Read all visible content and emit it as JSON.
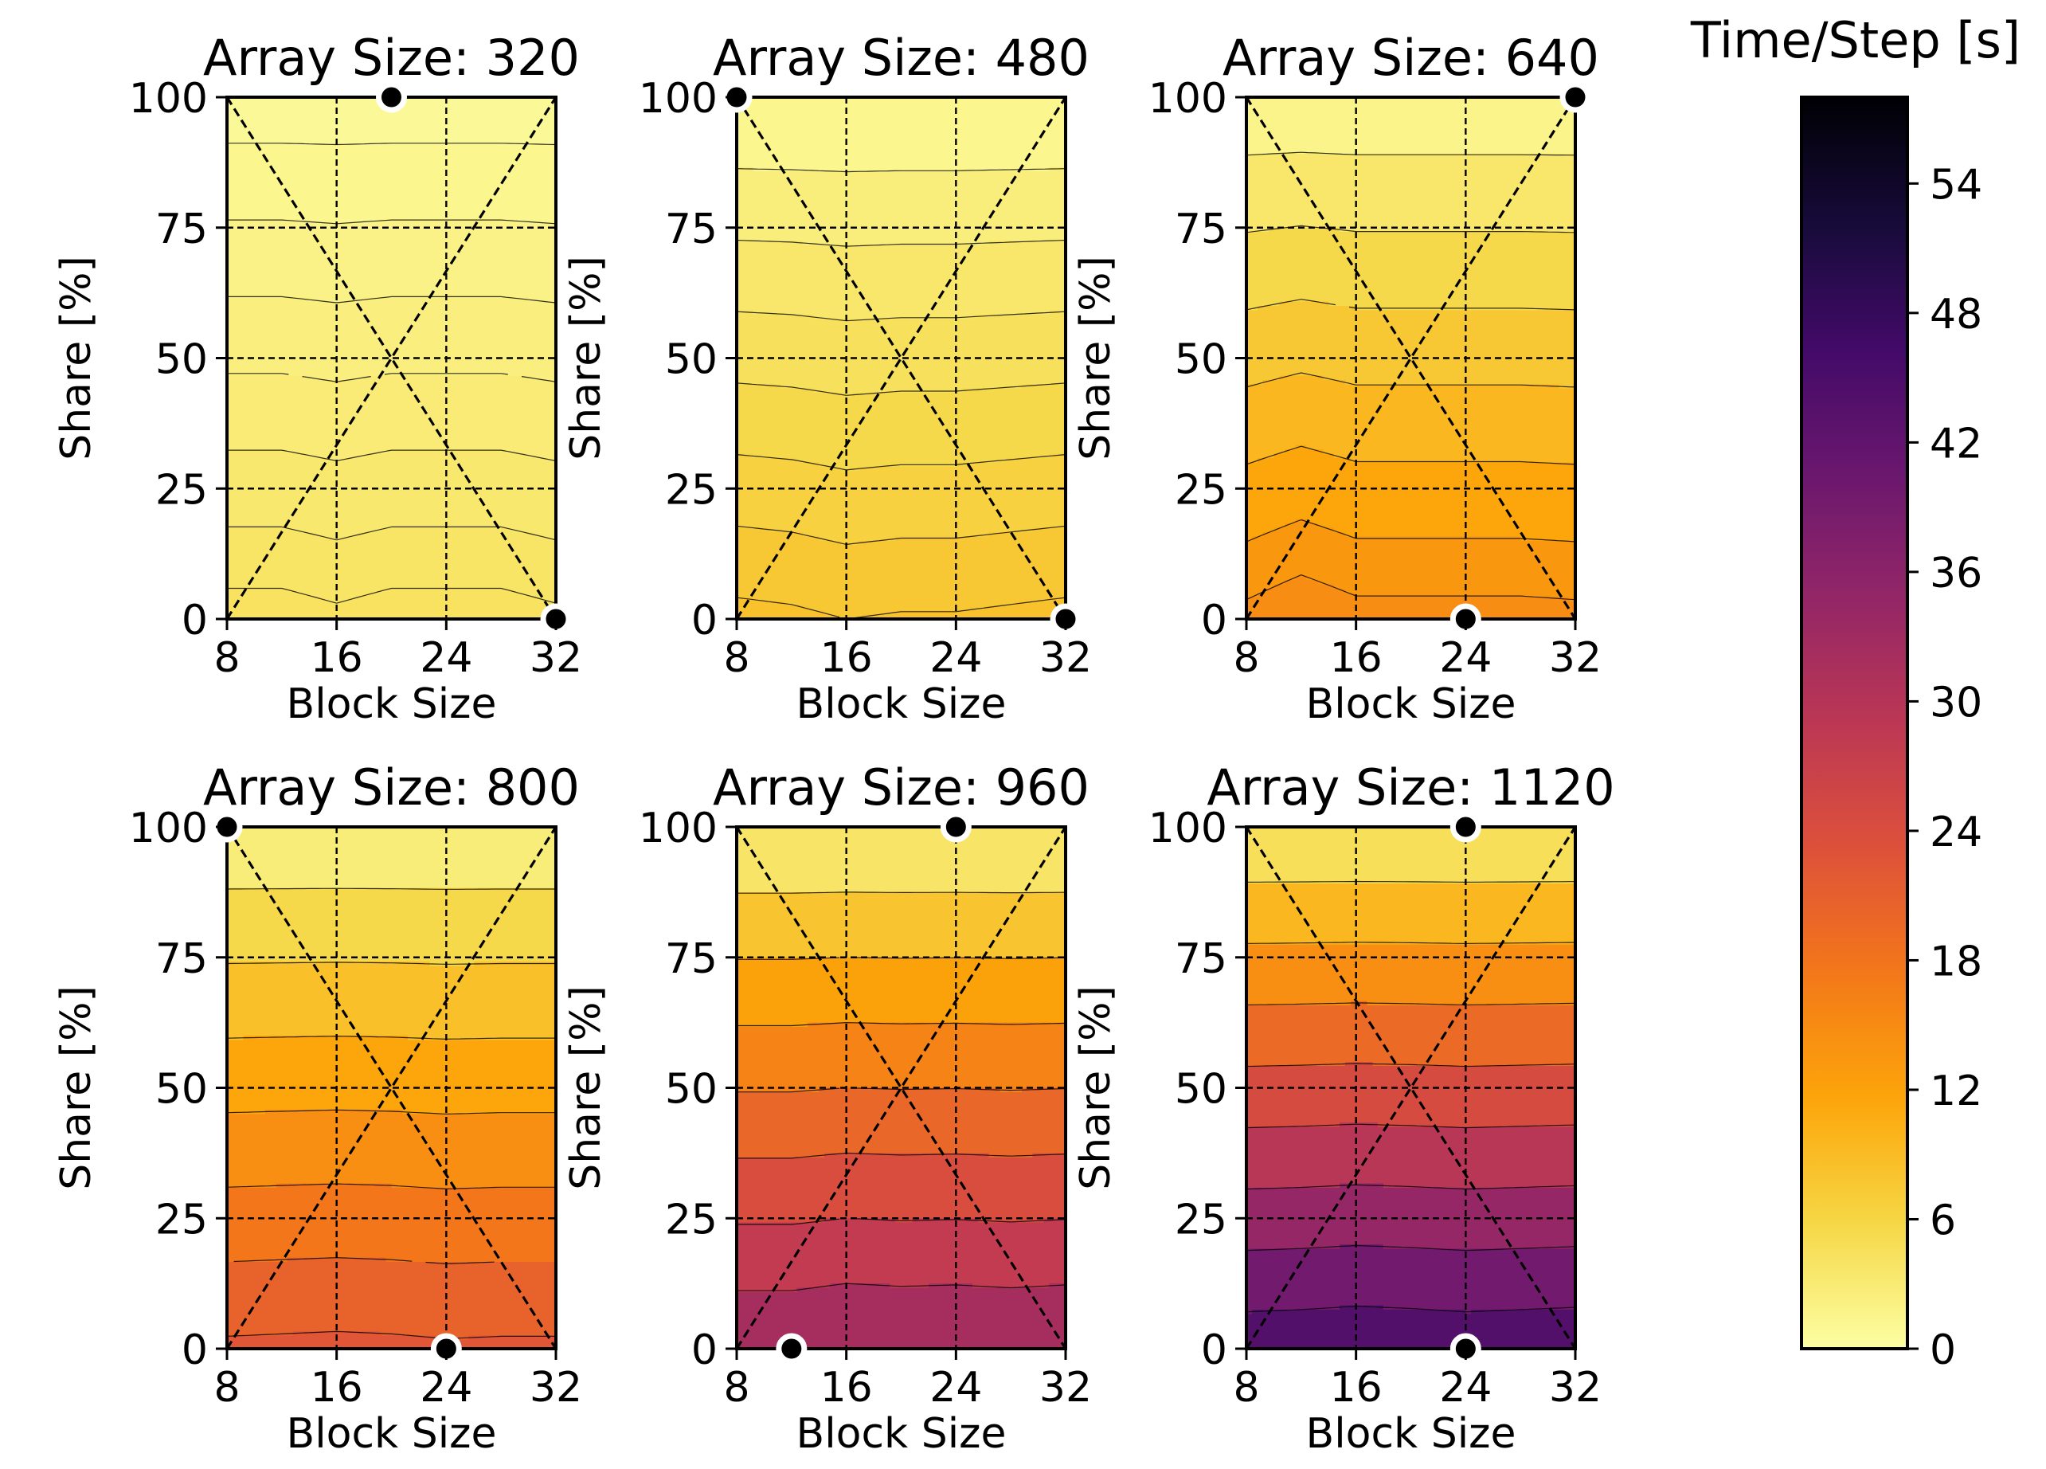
{
  "chart_data": {
    "type": "contourf",
    "colorbar": {
      "label": "Time/Step [s]",
      "range": [
        0,
        58
      ],
      "ticks": [
        0,
        6,
        12,
        18,
        24,
        30,
        36,
        42,
        48,
        54
      ],
      "tick_labels": [
        "0",
        "6",
        "12",
        "18",
        "24",
        "30",
        "36",
        "42",
        "48",
        "54"
      ],
      "colormap": "inferno_r",
      "stops": [
        "#fcffa4",
        "#f6d746",
        "#fca50a",
        "#f37819",
        "#dd513a",
        "#bc3754",
        "#932667",
        "#6a176e",
        "#420a68",
        "#160b39",
        "#000004"
      ]
    },
    "x_grid": [
      8,
      12,
      16,
      20,
      24,
      28,
      32
    ],
    "y_grid": [
      0,
      10,
      20,
      30,
      40,
      50,
      60,
      70,
      80,
      90,
      100
    ],
    "panels": [
      {
        "title": "Array Size: 320",
        "xlabel": "Block Size",
        "ylabel": "Share [%]",
        "xlim": [
          8,
          32
        ],
        "ylim": [
          0,
          100
        ],
        "xticks": [
          8,
          16,
          24,
          32
        ],
        "xtick_labels": [
          "8",
          "16",
          "24",
          "32"
        ],
        "yticks": [
          0,
          25,
          50,
          75,
          100
        ],
        "ytick_labels": [
          "0",
          "25",
          "50",
          "75",
          "100"
        ],
        "bottom_profile": [
          4.2,
          4.2,
          4.1,
          4.2,
          4.2,
          4.2,
          4.1
        ],
        "top_profile": [
          0.8,
          0.8,
          0.8,
          0.8,
          0.8,
          0.8,
          0.8
        ],
        "gamma": 1.0,
        "levels": [
          1.1,
          1.6,
          2.1,
          2.6,
          3.1,
          3.6,
          4.0
        ],
        "min_markers": [
          [
            20,
            100
          ],
          [
            32,
            0
          ]
        ]
      },
      {
        "title": "Array Size: 480",
        "xlabel": "Block Size",
        "ylabel": "Share [%]",
        "xlim": [
          8,
          32
        ],
        "ylim": [
          0,
          100
        ],
        "xticks": [
          8,
          16,
          24,
          32
        ],
        "xtick_labels": [
          "8",
          "16",
          "24",
          "32"
        ],
        "yticks": [
          0,
          25,
          50,
          75,
          100
        ],
        "ytick_labels": [
          "0",
          "25",
          "50",
          "75",
          "100"
        ],
        "bottom_profile": [
          8.3,
          8.2,
          8.0,
          8.1,
          8.1,
          8.2,
          8.3
        ],
        "top_profile": [
          1.0,
          1.0,
          1.0,
          1.0,
          1.0,
          1.0,
          1.0
        ],
        "gamma": 1.0,
        "levels": [
          2.0,
          3.0,
          4.0,
          5.0,
          6.0,
          7.0,
          8.0
        ],
        "min_markers": [
          [
            8,
            100
          ],
          [
            32,
            0
          ]
        ]
      },
      {
        "title": "Array Size: 640",
        "xlabel": "Block Size",
        "ylabel": "Share [%]",
        "xlim": [
          8,
          32
        ],
        "ylim": [
          0,
          100
        ],
        "xticks": [
          8,
          16,
          24,
          32
        ],
        "xtick_labels": [
          "8",
          "16",
          "24",
          "32"
        ],
        "yticks": [
          0,
          25,
          50,
          75,
          100
        ],
        "ytick_labels": [
          "0",
          "25",
          "50",
          "75",
          "100"
        ],
        "bottom_profile": [
          14.5,
          15.2,
          14.6,
          14.6,
          14.6,
          14.6,
          14.5
        ],
        "top_profile": [
          1.0,
          1.0,
          1.0,
          1.0,
          1.0,
          1.0,
          1.0
        ],
        "gamma": 1.0,
        "levels": [
          2.5,
          4.5,
          6.5,
          8.5,
          10.5,
          12.5,
          14.0
        ],
        "min_markers": [
          [
            32,
            100
          ],
          [
            24,
            0
          ]
        ]
      },
      {
        "title": "Array Size: 800",
        "xlabel": "Block Size",
        "ylabel": "Share [%]",
        "xlim": [
          8,
          32
        ],
        "ylim": [
          0,
          100
        ],
        "xticks": [
          8,
          16,
          24,
          32
        ],
        "xtick_labels": [
          "8",
          "16",
          "24",
          "32"
        ],
        "yticks": [
          0,
          25,
          50,
          75,
          100
        ],
        "ytick_labels": [
          "0",
          "25",
          "50",
          "75",
          "100"
        ],
        "bottom_profile": [
          22.5,
          22.6,
          22.7,
          22.6,
          22.4,
          22.5,
          22.5
        ],
        "top_profile": [
          1.5,
          1.5,
          1.5,
          1.5,
          1.5,
          1.5,
          1.5
        ],
        "gamma": 1.0,
        "levels": [
          4.0,
          7.0,
          10.0,
          13.0,
          16.0,
          19.0,
          22.0
        ],
        "min_markers": [
          [
            8,
            100
          ],
          [
            24,
            0
          ]
        ]
      },
      {
        "title": "Array Size: 960",
        "xlabel": "Block Size",
        "ylabel": "Share [%]",
        "xlim": [
          8,
          32
        ],
        "ylim": [
          0,
          100
        ],
        "xticks": [
          8,
          16,
          24,
          32
        ],
        "xtick_labels": [
          "8",
          "16",
          "24",
          "32"
        ],
        "yticks": [
          0,
          25,
          50,
          75,
          100
        ],
        "ytick_labels": [
          "0",
          "25",
          "50",
          "75",
          "100"
        ],
        "bottom_profile": [
          33.5,
          33.5,
          34.0,
          33.8,
          33.9,
          33.7,
          33.9
        ],
        "top_profile": [
          2.0,
          2.0,
          2.0,
          2.0,
          2.0,
          2.0,
          2.0
        ],
        "gamma": 1.0,
        "levels": [
          6.0,
          10.0,
          14.0,
          18.0,
          22.0,
          26.0,
          30.0
        ],
        "min_markers": [
          [
            24,
            100
          ],
          [
            12,
            0
          ]
        ]
      },
      {
        "title": "Array Size: 1120",
        "xlabel": "Block Size",
        "ylabel": "Share [%]",
        "xlim": [
          8,
          32
        ],
        "ylim": [
          0,
          100
        ],
        "xticks": [
          8,
          16,
          24,
          32
        ],
        "xtick_labels": [
          "8",
          "16",
          "24",
          "32"
        ],
        "yticks": [
          0,
          25,
          50,
          75,
          100
        ],
        "ytick_labels": [
          "0",
          "25",
          "50",
          "75",
          "100"
        ],
        "bottom_profile": [
          45.0,
          45.2,
          45.5,
          45.3,
          45.0,
          45.2,
          45.4
        ],
        "top_profile": [
          2.5,
          2.5,
          2.5,
          2.5,
          2.5,
          2.5,
          2.5
        ],
        "gamma": 1.0,
        "levels": [
          7.0,
          12.0,
          17.0,
          22.0,
          27.0,
          32.0,
          37.0,
          42.0
        ],
        "min_markers": [
          [
            24,
            100
          ],
          [
            24,
            0
          ]
        ]
      }
    ]
  }
}
